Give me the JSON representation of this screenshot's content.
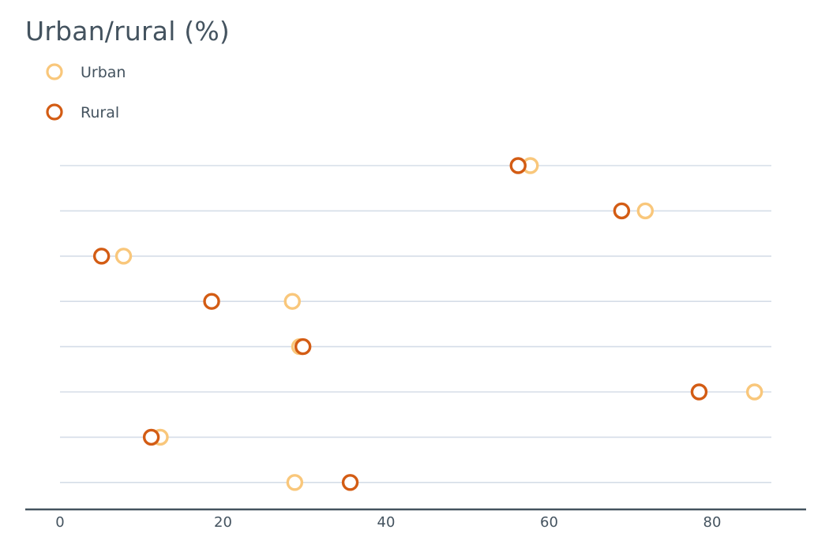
{
  "title": "Urban/rural (%)",
  "colors": {
    "urban": "#f9c77b",
    "rural": "#d35c14",
    "gridline": "#d5dde8",
    "axis": "#44535f",
    "text": "#44535f"
  },
  "chart_data": {
    "type": "scatter",
    "title": "Urban/rural (%)",
    "xlabel": "",
    "ylabel": "",
    "xlim": [
      -4,
      91
    ],
    "xticks": [
      0,
      20,
      40,
      60,
      80
    ],
    "grid": "horizontal",
    "legend_position": "top-left",
    "series": [
      {
        "name": "Urban",
        "values": [
          57.7,
          71.8,
          7.8,
          28.5,
          29.4,
          85.2,
          12.3,
          28.8
        ]
      },
      {
        "name": "Rural",
        "values": [
          56.2,
          68.9,
          5.1,
          18.6,
          29.8,
          78.4,
          11.2,
          35.6
        ]
      }
    ]
  }
}
